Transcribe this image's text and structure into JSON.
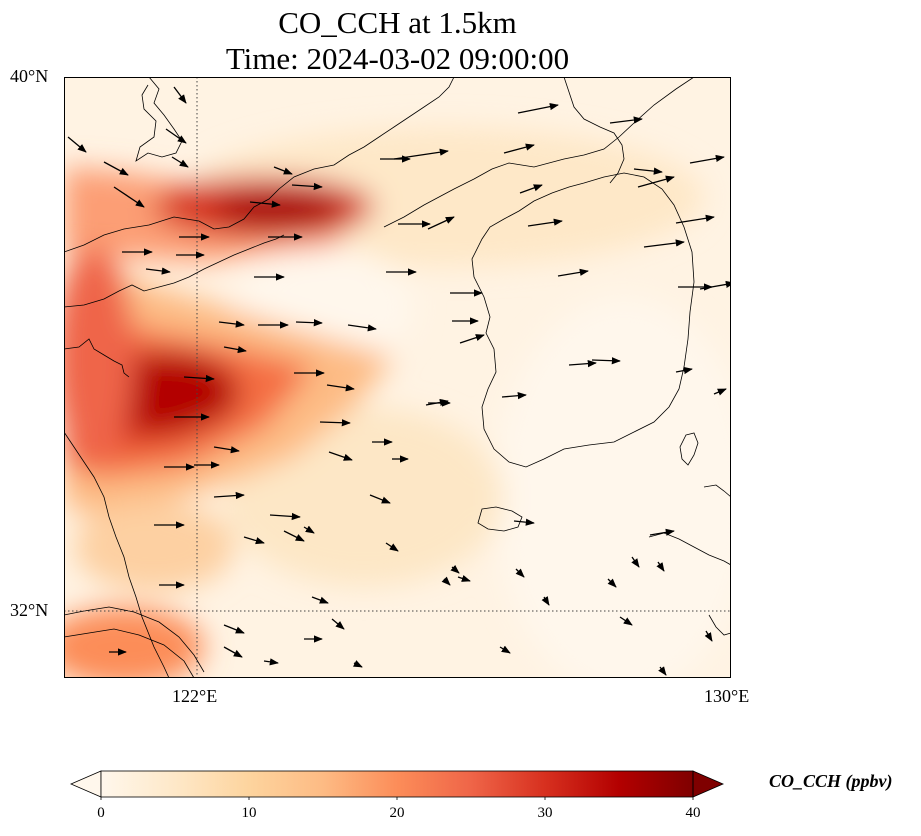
{
  "title": {
    "line1": "CO_CCH at 1.5km",
    "line2": "Time: 2024-03-02 09:00:00"
  },
  "map": {
    "lat_labels": [
      "40°N",
      "32°N"
    ],
    "lon_labels": [
      "122°E",
      "130°E"
    ],
    "extent": {
      "lon": [
        120,
        130
      ],
      "lat": [
        31,
        40
      ]
    },
    "gridlines": {
      "lons": [
        122,
        130
      ],
      "lats": [
        32,
        40
      ],
      "style": "dotted"
    },
    "field_colormap": "OrRd",
    "vector_field": "wind arrows, predominantly westerly to north-westerly flow"
  },
  "colorbar": {
    "label": "CO_CCH (ppbv)",
    "ticks": [
      "0",
      "10",
      "20",
      "30",
      "40"
    ],
    "range": [
      0,
      40
    ],
    "extend": "both",
    "colors": [
      "#fff7ec",
      "#fee8c8",
      "#fdd49e",
      "#fdbb84",
      "#fc8d59",
      "#ef6548",
      "#d7301f",
      "#b30000",
      "#7f0000"
    ]
  }
}
